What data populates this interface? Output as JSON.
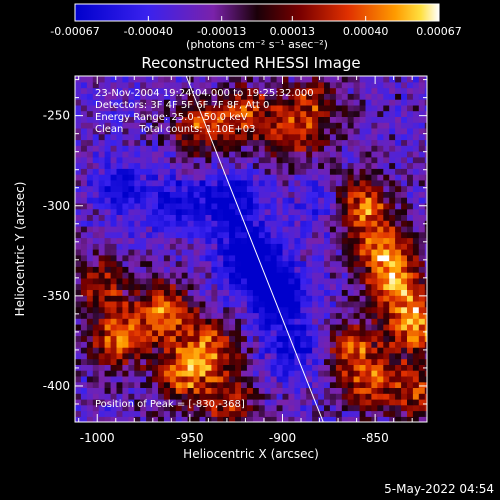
{
  "colorbar": {
    "tick_labels": [
      "-0.00067",
      "-0.00040",
      "-0.00013",
      "0.00013",
      "0.00040",
      "0.00067"
    ],
    "tick_values": [
      -0.00067,
      -0.0004,
      -0.00013,
      0.00013,
      0.0004,
      0.00067
    ],
    "units": "(photons cm⁻² s⁻¹ asec⁻²)",
    "colors": [
      "#0000cc",
      "#3322ee",
      "#7a22aa",
      "#1a0008",
      "#7a0000",
      "#e03000",
      "#ff9b00",
      "#ffe040",
      "#ffffff"
    ]
  },
  "chart_data": {
    "type": "heatmap",
    "title": "Reconstructed RHESSI Image",
    "xlabel": "Heliocentric X (arcsec)",
    "ylabel": "Heliocentric Y (arcsec)",
    "xlim": [
      -1012,
      -822
    ],
    "ylim": [
      -420,
      -228
    ],
    "x_ticks": [
      -1000,
      -950,
      -900,
      -850
    ],
    "x_tick_labels": [
      "-1000",
      "-950",
      "-900",
      "-850"
    ],
    "y_ticks": [
      -250,
      -300,
      -350,
      -400
    ],
    "y_tick_labels": [
      "-250",
      "-300",
      "-350",
      "-400"
    ],
    "annotations": [
      "23-Nov-2004 19:24:04.000 to 19:25:32.000",
      "Detectors: 3F 4F 5F 6F 7F 8F, Att 0",
      "Energy Range: 25.0 - 50.0 keV",
      "Clean     Total counts: 1.10E+03"
    ],
    "peak_label": "Position of Peak = [-830,-368]",
    "peak": [
      -830,
      -368
    ],
    "limb_line": [
      [
        -952,
        -228
      ],
      [
        -878,
        -420
      ]
    ],
    "bright_regions": [
      {
        "x": -990,
        "y": -375,
        "level": 0.95
      },
      {
        "x": -965,
        "y": -360,
        "level": 0.85
      },
      {
        "x": -955,
        "y": -395,
        "level": 0.8
      },
      {
        "x": -940,
        "y": -380,
        "level": 0.7
      },
      {
        "x": -1000,
        "y": -345,
        "level": 0.6
      },
      {
        "x": -930,
        "y": -410,
        "level": 0.6
      },
      {
        "x": -945,
        "y": -258,
        "level": 0.75
      },
      {
        "x": -920,
        "y": -250,
        "level": 0.7
      },
      {
        "x": -895,
        "y": -262,
        "level": 0.6
      },
      {
        "x": -885,
        "y": -245,
        "level": 0.55
      },
      {
        "x": -860,
        "y": -300,
        "level": 0.9
      },
      {
        "x": -848,
        "y": -325,
        "level": 0.85
      },
      {
        "x": -840,
        "y": -345,
        "level": 0.8
      },
      {
        "x": -830,
        "y": -368,
        "level": 1.0
      },
      {
        "x": -865,
        "y": -380,
        "level": 0.7
      },
      {
        "x": -855,
        "y": -400,
        "level": 0.65
      },
      {
        "x": -828,
        "y": -405,
        "level": 0.7
      }
    ],
    "dim_regions": [
      {
        "x": -920,
        "y": -330,
        "level": -0.9
      },
      {
        "x": -905,
        "y": -350,
        "level": -0.85
      },
      {
        "x": -930,
        "y": -300,
        "level": -0.7
      },
      {
        "x": -895,
        "y": -380,
        "level": -0.6
      },
      {
        "x": -960,
        "y": -300,
        "level": -0.5
      },
      {
        "x": -990,
        "y": -290,
        "level": -0.45
      },
      {
        "x": -880,
        "y": -300,
        "level": -0.4
      }
    ]
  },
  "timestamp": "5-May-2022 04:54"
}
